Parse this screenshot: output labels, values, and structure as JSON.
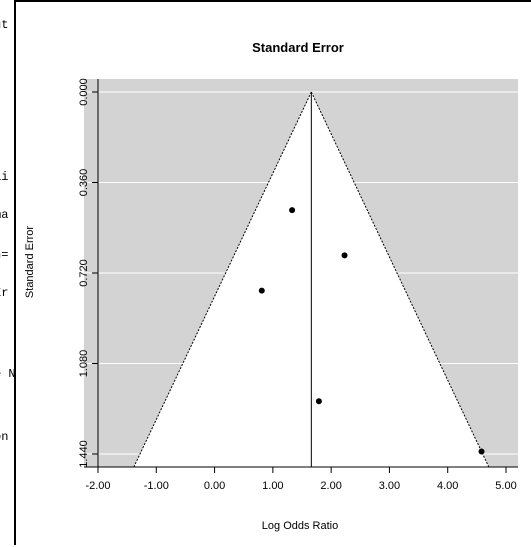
{
  "console": {
    "lines": [
      "ut",
      "ai",
      "ma",
      "n=",
      "Er",
      "e N",
      "on"
    ]
  },
  "chart_data": {
    "type": "scatter",
    "title": "Standard Error",
    "xlabel": "Log Odds Ratio",
    "ylabel": "Standard Error",
    "xlim": [
      -2.0,
      5.0
    ],
    "ylim": [
      0.0,
      1.44
    ],
    "y_reversed": true,
    "x_ticks": [
      "-2.00",
      "-1.00",
      "0.00",
      "1.00",
      "2.00",
      "3.00",
      "4.00",
      "5.00"
    ],
    "y_ticks": [
      "0.000",
      "0.360",
      "0.720",
      "1.080",
      "1.440"
    ],
    "summary_estimate": 1.66,
    "funnel": {
      "apex": [
        1.66,
        0.0
      ],
      "base_left": [
        -1.28,
        1.44
      ],
      "base_right": [
        4.6,
        1.44
      ]
    },
    "points": [
      {
        "x": 1.33,
        "y": 0.47
      },
      {
        "x": 2.23,
        "y": 0.65
      },
      {
        "x": 0.81,
        "y": 0.79
      },
      {
        "x": 1.79,
        "y": 1.23
      },
      {
        "x": 4.58,
        "y": 1.43
      }
    ],
    "grid": true,
    "colors": {
      "background": "#d3d3d3",
      "funnel_fill": "#ffffff",
      "grid": "#ffffff",
      "points": "#000000"
    }
  }
}
